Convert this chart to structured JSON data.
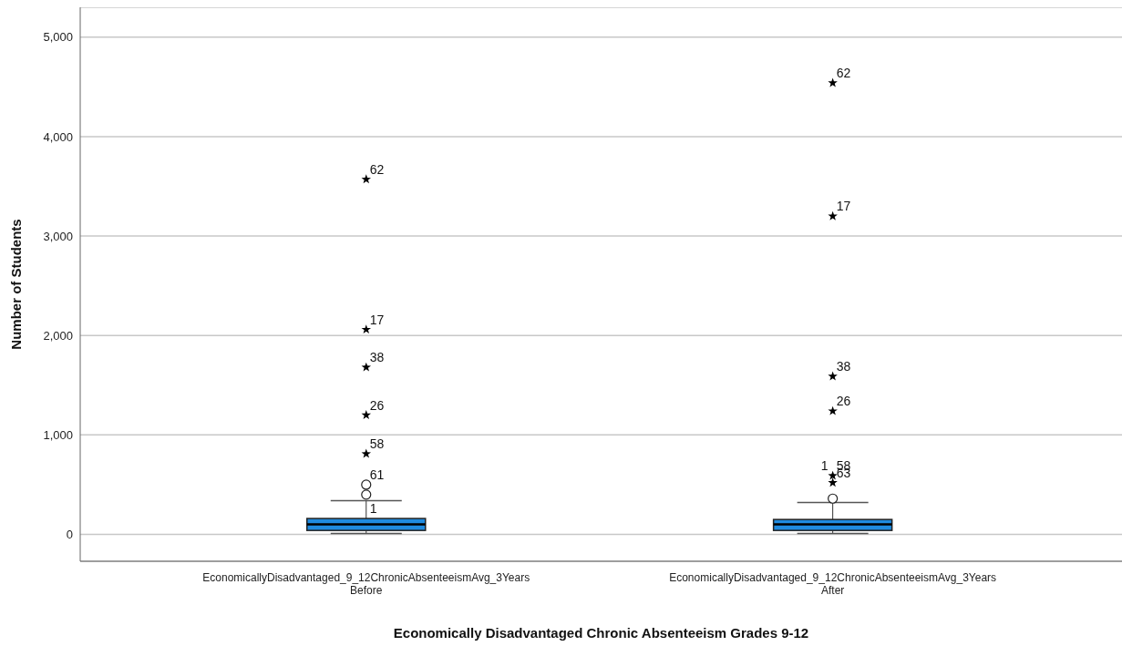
{
  "chart_data": {
    "type": "box",
    "xlabel": "Economically Disadvantaged Chronic Absenteeism Grades 9-12",
    "ylabel": "Number of Students",
    "categories": [
      "EconomicallyDisadvantaged_9_12ChronicAbsenteeismAvg_3Years\nBefore",
      "EconomicallyDisadvantaged_9_12ChronicAbsenteeismAvg_3Years\nAfter"
    ],
    "color": "#1f8be0",
    "boxes": [
      {
        "low": 10,
        "q1": 40,
        "median": 100,
        "q3": 160,
        "high": 340
      },
      {
        "low": 10,
        "q1": 40,
        "median": 100,
        "q3": 150,
        "high": 320
      }
    ],
    "series": [
      {
        "type": "scatter",
        "marker": "star",
        "color": "#000000",
        "x": [
          "EconomicallyDisadvantaged_9_12ChronicAbsenteeismAvg_3Years\nBefore",
          "EconomicallyDisadvantaged_9_12ChronicAbsenteeismAvg_3Years\nBefore",
          "EconomicallyDisadvantaged_9_12ChronicAbsenteeismAvg_3Years\nBefore",
          "EconomicallyDisadvantaged_9_12ChronicAbsenteeismAvg_3Years\nBefore",
          "EconomicallyDisadvantaged_9_12ChronicAbsenteeismAvg_3Years\nBefore",
          "EconomicallyDisadvantaged_9_12ChronicAbsenteeismAvg_3Years\nAfter",
          "EconomicallyDisadvantaged_9_12ChronicAbsenteeismAvg_3Years\nAfter",
          "EconomicallyDisadvantaged_9_12ChronicAbsenteeismAvg_3Years\nAfter",
          "EconomicallyDisadvantaged_9_12ChronicAbsenteeismAvg_3Years\nAfter",
          "EconomicallyDisadvantaged_9_12ChronicAbsenteeismAvg_3Years\nAfter",
          "EconomicallyDisadvantaged_9_12ChronicAbsenteeismAvg_3Years\nAfter"
        ],
        "values": [
          3570,
          2060,
          1680,
          1200,
          810,
          4540,
          3200,
          1590,
          1240,
          590,
          520
        ]
      },
      {
        "type": "scatter",
        "marker": "circle",
        "color": "#222222",
        "x": [
          "EconomicallyDisadvantaged_9_12ChronicAbsenteeismAvg_3Years\nBefore",
          "EconomicallyDisadvantaged_9_12ChronicAbsenteeismAvg_3Years\nBefore",
          "EconomicallyDisadvantaged_9_12ChronicAbsenteeismAvg_3Years\nAfter"
        ],
        "values": [
          400,
          500,
          360
        ]
      }
    ],
    "annotations": [
      {
        "text": "62",
        "x": "EconomicallyDisadvantaged_9_12ChronicAbsenteeismAvg_3Years\nBefore",
        "y": 3570
      },
      {
        "text": "17",
        "x": "EconomicallyDisadvantaged_9_12ChronicAbsenteeismAvg_3Years\nBefore",
        "y": 2060
      },
      {
        "text": "38",
        "x": "EconomicallyDisadvantaged_9_12ChronicAbsenteeismAvg_3Years\nBefore",
        "y": 1680
      },
      {
        "text": "26",
        "x": "EconomicallyDisadvantaged_9_12ChronicAbsenteeismAvg_3Years\nBefore",
        "y": 1200
      },
      {
        "text": "58",
        "x": "EconomicallyDisadvantaged_9_12ChronicAbsenteeismAvg_3Years\nBefore",
        "y": 810
      },
      {
        "text": "61",
        "x": "EconomicallyDisadvantaged_9_12ChronicAbsenteeismAvg_3Years\nBefore",
        "y": 500
      },
      {
        "text": "1",
        "x": "EconomicallyDisadvantaged_9_12ChronicAbsenteeismAvg_3Years\nBefore",
        "y": 160
      },
      {
        "text": "62",
        "x": "EconomicallyDisadvantaged_9_12ChronicAbsenteeismAvg_3Years\nAfter",
        "y": 4540
      },
      {
        "text": "17",
        "x": "EconomicallyDisadvantaged_9_12ChronicAbsenteeismAvg_3Years\nAfter",
        "y": 3200
      },
      {
        "text": "38",
        "x": "EconomicallyDisadvantaged_9_12ChronicAbsenteeismAvg_3Years\nAfter",
        "y": 1590
      },
      {
        "text": "26",
        "x": "EconomicallyDisadvantaged_9_12ChronicAbsenteeismAvg_3Years\nAfter",
        "y": 1240
      },
      {
        "text": "58",
        "x": "EconomicallyDisadvantaged_9_12ChronicAbsenteeismAvg_3Years\nAfter",
        "y": 590
      },
      {
        "text": "1",
        "x": "EconomicallyDisadvantaged_9_12ChronicAbsenteeismAvg_3Years\nAfter",
        "y": 590
      },
      {
        "text": "63",
        "x": "EconomicallyDisadvantaged_9_12ChronicAbsenteeismAvg_3Years\nAfter",
        "y": 520
      }
    ],
    "ylim": [
      -270,
      5300
    ],
    "yticks": [
      {
        "value": 0,
        "label": "0"
      },
      {
        "value": 1000,
        "label": "1,000"
      },
      {
        "value": 2000,
        "label": "2,000"
      },
      {
        "value": 3000,
        "label": "3,000"
      },
      {
        "value": 4000,
        "label": "4,000"
      },
      {
        "value": 5000,
        "label": "5,000"
      }
    ],
    "grid": "y",
    "legend": false
  }
}
